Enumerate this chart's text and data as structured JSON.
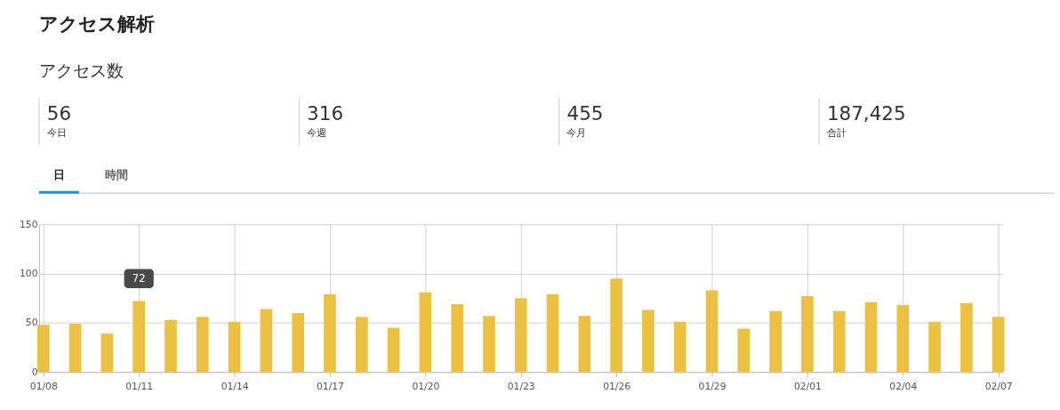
{
  "chart_data": {
    "type": "bar",
    "title": "アクセス解析",
    "subtitle": "アクセス数",
    "categories": [
      "01/08",
      null,
      null,
      "01/11",
      null,
      null,
      "01/14",
      null,
      null,
      "01/17",
      null,
      null,
      "01/20",
      null,
      null,
      "01/23",
      null,
      null,
      "01/26",
      null,
      null,
      "01/29",
      null,
      null,
      "02/01",
      null,
      null,
      "02/04",
      null,
      null,
      "02/07"
    ],
    "values": [
      48,
      49,
      39,
      72,
      53,
      56,
      51,
      64,
      60,
      79,
      56,
      45,
      81,
      69,
      57,
      75,
      79,
      57,
      95,
      63,
      51,
      83,
      44,
      62,
      77,
      62,
      71,
      68,
      51,
      70,
      56
    ],
    "color": "#ecc142",
    "ylim": [
      0,
      150
    ],
    "yticks": [
      0,
      50,
      100,
      150
    ],
    "grid": true,
    "annotations": [
      "56",
      "今日",
      "316",
      "今週",
      "455",
      "今月",
      "187,425",
      "合計",
      "日",
      "時間",
      {
        "text": "72",
        "x": "01/11",
        "y": 72
      }
    ]
  }
}
